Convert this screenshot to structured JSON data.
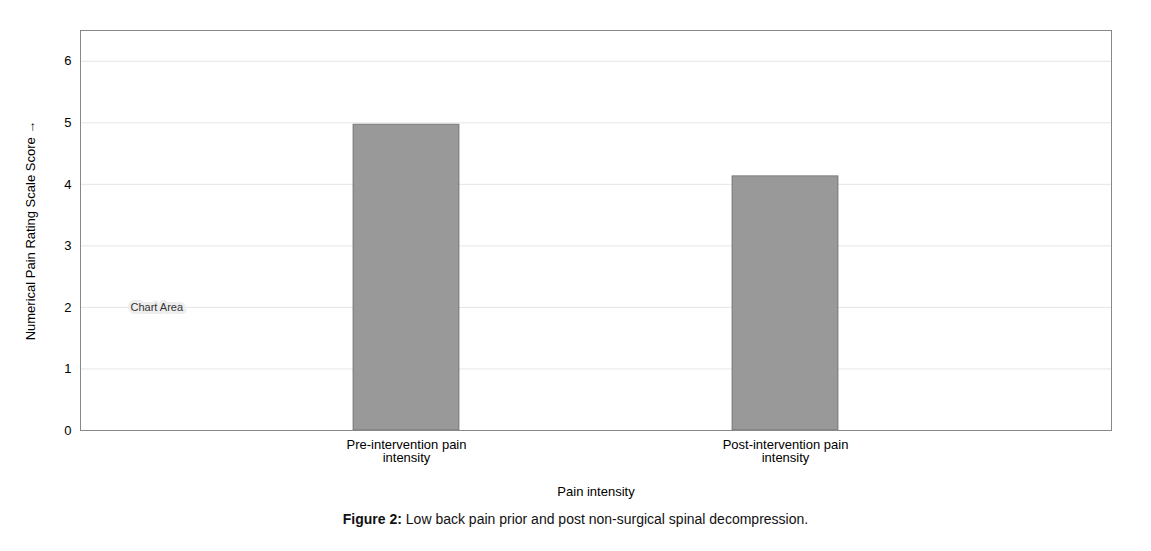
{
  "chart_data": {
    "type": "bar",
    "categories": [
      "Pre-intervention pain\nintensity",
      "Post-intervention pain\nintensity"
    ],
    "values": [
      4.97,
      4.13
    ],
    "color": "#999999",
    "xlabel": "Pain intensity",
    "ylabel": "Numerical Pain Rating Scale Score",
    "ylim": [
      0,
      6.5
    ],
    "yticks": [
      0,
      1,
      2,
      3,
      4,
      5,
      6
    ],
    "grid": true,
    "annotations": [
      {
        "text": "Chart Area",
        "y": 2
      }
    ],
    "caption": "Figure 2: Low back pain prior and post non-surgical spinal decompression."
  }
}
